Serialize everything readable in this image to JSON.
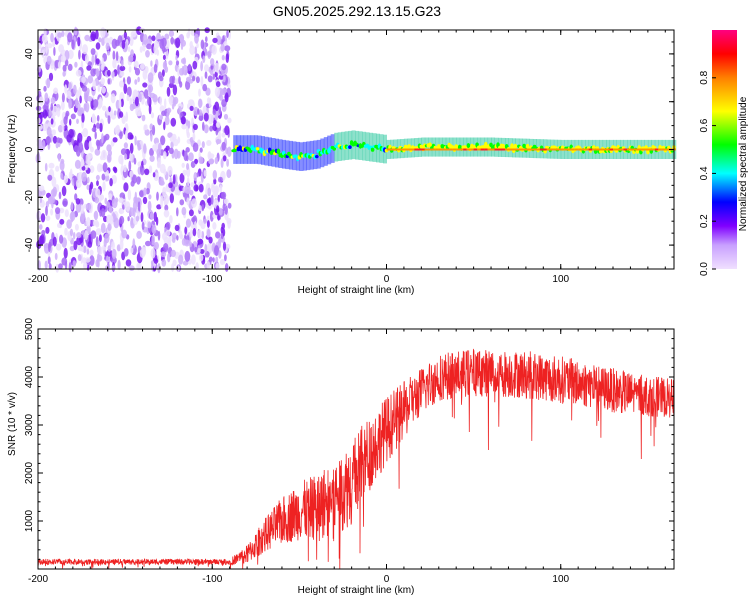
{
  "title": "GN05.2025.292.13.15.G23",
  "chart_data": [
    {
      "type": "heatmap",
      "name": "spectrogram",
      "xlabel": "Height of straight line (km)",
      "ylabel": "Frequency (Hz)",
      "xlim": [
        -200,
        165
      ],
      "ylim": [
        -50,
        50
      ],
      "xticks": [
        -200,
        -100,
        0,
        100
      ],
      "yticks": [
        -40,
        -20,
        0,
        20,
        40
      ],
      "colorbar": {
        "label": "Normalized spectral amplitude",
        "range": [
          0,
          1
        ],
        "ticks": [
          0.0,
          0.2,
          0.4,
          0.6,
          0.8
        ],
        "tick_labels": [
          "0.0",
          "0.2",
          "0.4",
          "0.6",
          "0.8"
        ],
        "colors": [
          "#f0e0ff",
          "#c8a0ff",
          "#8000ff",
          "#0000ff",
          "#00ffff",
          "#00ff00",
          "#ffff00",
          "#ff8000",
          "#ff0000",
          "#ff0080"
        ]
      },
      "regions": [
        {
          "description": "broadband noise",
          "x_range": [
            -200,
            -90
          ],
          "freq_range": [
            -50,
            50
          ],
          "amplitude_range": [
            0.05,
            0.2
          ]
        },
        {
          "description": "signal track",
          "x_range": [
            -90,
            165
          ],
          "center_freq_hz": [
            [
              -85,
              0
            ],
            [
              -75,
              0
            ],
            [
              -60,
              -2
            ],
            [
              -50,
              -3
            ],
            [
              -40,
              -2
            ],
            [
              -30,
              1
            ],
            [
              -20,
              2
            ],
            [
              -10,
              1
            ],
            [
              0,
              0
            ],
            [
              20,
              1
            ],
            [
              60,
              1
            ],
            [
              100,
              0
            ],
            [
              165,
              0
            ]
          ],
          "amplitude_range": [
            0.3,
            0.95
          ]
        }
      ]
    },
    {
      "type": "line",
      "name": "snr",
      "xlabel": "Height of straight line (km)",
      "ylabel": "SNR (10 * v/v)",
      "xlim": [
        -200,
        165
      ],
      "ylim": [
        0,
        5000
      ],
      "xticks": [
        -200,
        -100,
        0,
        100
      ],
      "yticks": [
        1000,
        2000,
        3000,
        4000,
        5000
      ],
      "color": "#ee2222",
      "trend": [
        [
          -200,
          150
        ],
        [
          -90,
          150
        ],
        [
          -80,
          300
        ],
        [
          -70,
          700
        ],
        [
          -60,
          1000
        ],
        [
          -50,
          1200
        ],
        [
          -40,
          1300
        ],
        [
          -30,
          1500
        ],
        [
          -20,
          1800
        ],
        [
          -10,
          2400
        ],
        [
          0,
          2900
        ],
        [
          10,
          3300
        ],
        [
          20,
          3700
        ],
        [
          30,
          4000
        ],
        [
          50,
          4100
        ],
        [
          80,
          4050
        ],
        [
          100,
          3950
        ],
        [
          120,
          3800
        ],
        [
          140,
          3650
        ],
        [
          165,
          3550
        ]
      ],
      "noise_amplitude": [
        [
          -200,
          60
        ],
        [
          -90,
          60
        ],
        [
          -80,
          200
        ],
        [
          -60,
          500
        ],
        [
          -40,
          700
        ],
        [
          -20,
          900
        ],
        [
          0,
          700
        ],
        [
          20,
          500
        ],
        [
          60,
          500
        ],
        [
          100,
          500
        ],
        [
          140,
          450
        ],
        [
          165,
          400
        ]
      ]
    }
  ]
}
